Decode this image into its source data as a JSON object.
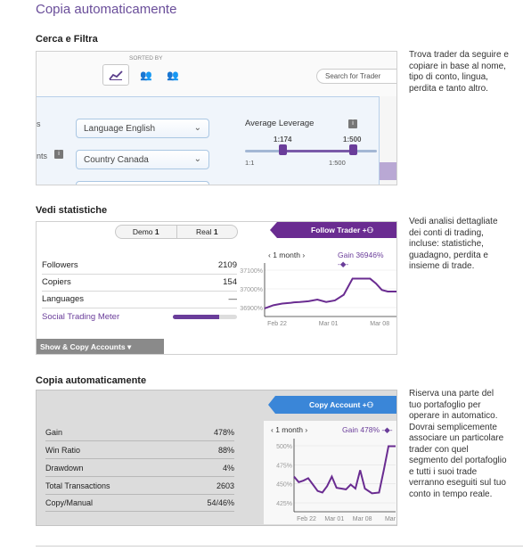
{
  "page_title": "Copia automaticamente",
  "sections": {
    "search": {
      "title": "Cerca e Filtra",
      "description": "Trova trader da seguire e copiare in base al nome, tipo di conto, lingua, perdita e tanto altro.",
      "sorted_by_label": "SORTED BY",
      "search_placeholder": "Search for Trader",
      "language_select": "Language English",
      "country_select": "Country Canada",
      "average_leverage_label": "Average Leverage",
      "slider_left_value": "1:174",
      "slider_right_value": "1:500",
      "slider_min_label": "1:1",
      "slider_max_label": "1:500",
      "partial_left_top": "s",
      "partial_left_mid": "nts"
    },
    "stats": {
      "title": "Vedi statistiche",
      "description": "Vedi analisi dettagliate dei conti di trading, incluse: statistiche, guadagno, perdita e insieme di trade.",
      "tabs": [
        {
          "label": "Demo",
          "count": "1"
        },
        {
          "label": "Real",
          "count": "1"
        }
      ],
      "follow_button": "Follow Trader",
      "rows": [
        {
          "label": "Followers",
          "value": "2109"
        },
        {
          "label": "Copiers",
          "value": "154"
        },
        {
          "label": "Languages",
          "value": "—"
        }
      ],
      "meter_label": "Social Trading Meter",
      "meter_level": 0.72,
      "dropdown_label": "Show & Copy Accounts",
      "chart_period": "1 month",
      "chart_gain": "Gain 36946%"
    },
    "copy": {
      "title": "Copia automaticamente",
      "description": "Riserva una parte del tuo portafoglio per operare in automatico. Dovrai semplicemente associare un particolare trader con quel segmento del portafoglio e tutti i suoi trade verranno eseguiti sul tuo conto in tempo reale.",
      "copy_button": "Copy Account",
      "rows": [
        {
          "label": "Gain",
          "value": "478%"
        },
        {
          "label": "Win Ratio",
          "value": "88%"
        },
        {
          "label": "Drawdown",
          "value": "4%"
        },
        {
          "label": "Total Transactions",
          "value": "2603"
        },
        {
          "label": "Copy/Manual",
          "value": "54/46%"
        }
      ],
      "chart_period": "1 month",
      "chart_gain": "Gain 478%"
    }
  },
  "chart_data": [
    {
      "type": "line",
      "y_tick_labels": [
        "37100%",
        "37000%",
        "36900%"
      ],
      "x_tick_labels": [
        "Feb 22",
        "Mar 01",
        "Mar 08"
      ],
      "ylim": [
        36830,
        37140
      ],
      "x": [
        0,
        3,
        6,
        9,
        10,
        12,
        15,
        18,
        21,
        24,
        27,
        30,
        33,
        36,
        38,
        40,
        42,
        45
      ],
      "values": [
        36880,
        36900,
        36910,
        36915,
        36918,
        36920,
        36925,
        36935,
        36920,
        36930,
        36965,
        37065,
        37065,
        37065,
        37035,
        36995,
        36985,
        36985
      ]
    },
    {
      "type": "line",
      "y_tick_labels": [
        "500%",
        "475%",
        "450%",
        "425%"
      ],
      "x_tick_labels": [
        "Feb 22",
        "Mar 01",
        "Mar 08",
        "Mar"
      ],
      "ylim": [
        418,
        505
      ],
      "x": [
        0,
        2,
        4,
        6,
        8,
        10,
        12,
        14,
        16,
        18,
        20,
        22,
        24,
        26,
        28,
        30,
        33,
        36,
        38,
        40,
        43
      ],
      "values": [
        462,
        455,
        457,
        460,
        452,
        444,
        442,
        450,
        462,
        448,
        447,
        446,
        452,
        447,
        470,
        447,
        441,
        442,
        470,
        500,
        500
      ]
    }
  ]
}
